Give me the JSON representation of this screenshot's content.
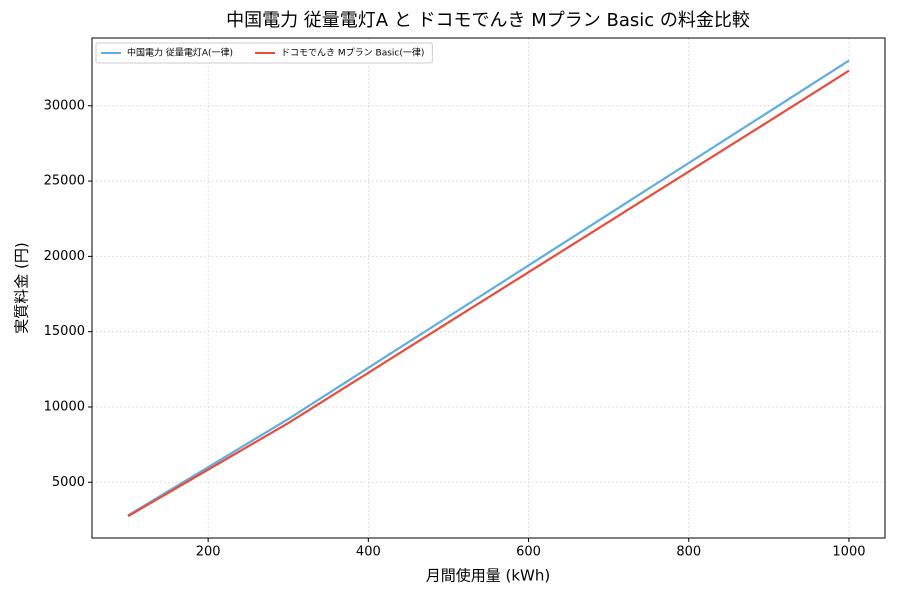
{
  "chart_data": {
    "type": "line",
    "title": "中国電力 従量電灯A と ドコモでんき Mプラン Basic の料金比較",
    "x_label": "月間使用量 (kWh)",
    "y_label": "実質料金 (円)",
    "x": [
      100,
      200,
      300,
      400,
      500,
      600,
      700,
      800,
      900,
      1000
    ],
    "series": [
      {
        "name": "中国電力 従量電灯A(一律)",
        "color": "#5dade2",
        "values": [
          2800,
          6000,
          9200,
          12600,
          16000,
          19400,
          22800,
          26200,
          29600,
          33000
        ]
      },
      {
        "name": "ドコモでんき Mプラン Basic(一律)",
        "color": "#e74c3c",
        "values": [
          2750,
          5840,
          8930,
          12270,
          15610,
          18950,
          22290,
          25630,
          28970,
          32330
        ]
      }
    ],
    "xlim": [
      55,
      1045
    ],
    "ylim": [
      1300,
      34500
    ],
    "xticks": [
      200,
      400,
      600,
      800,
      1000
    ],
    "yticks": [
      5000,
      10000,
      15000,
      20000,
      25000,
      30000
    ],
    "grid": true,
    "legend": "upper-left"
  }
}
